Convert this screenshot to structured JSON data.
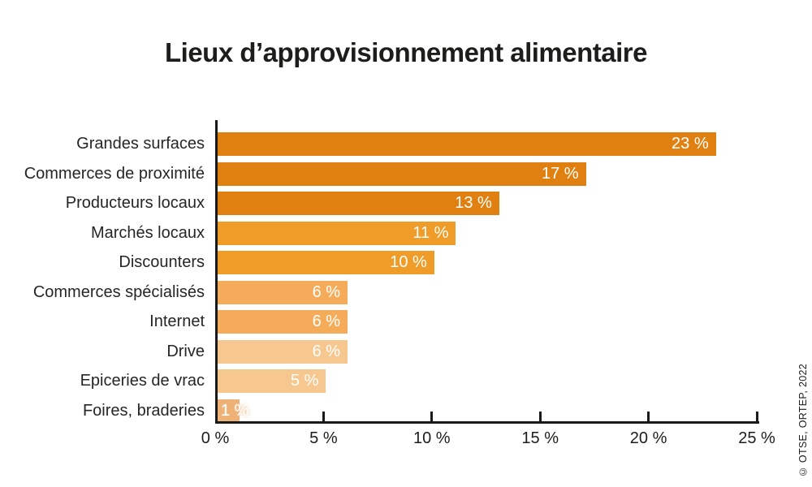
{
  "title": "Lieux d’approvisionnement alimentaire",
  "credit": "© OTSE, ORTEP, 2022",
  "chart_data": {
    "type": "bar",
    "orientation": "horizontal",
    "title": "Lieux d’approvisionnement alimentaire",
    "categories": [
      "Grandes surfaces",
      "Commerces de proximité",
      "Producteurs locaux",
      "Marchés locaux",
      "Discounters",
      "Commerces spécialisés",
      "Internet",
      "Drive",
      "Epiceries de vrac",
      "Foires, braderies"
    ],
    "values": [
      23,
      17,
      13,
      11,
      10,
      6,
      6,
      6,
      5,
      1
    ],
    "value_labels": [
      "23 %",
      "17 %",
      "13 %",
      "11 %",
      "10 %",
      "6 %",
      "6 %",
      "6 %",
      "5 %",
      "1 %"
    ],
    "bar_colors": [
      "#e08010",
      "#e08010",
      "#e08010",
      "#ef9c28",
      "#ef9c28",
      "#f4ac5a",
      "#f4ac5a",
      "#f6c88f",
      "#f6c88f",
      "#efb276"
    ],
    "x_ticks": [
      "0 %",
      "5 %",
      "10 %",
      "15 %",
      "20 %",
      "25 %"
    ],
    "x_tick_values": [
      0,
      5,
      10,
      15,
      20,
      25
    ],
    "xlim": [
      0,
      25
    ],
    "grid": false,
    "legend": false,
    "axis_color": "#1a1a1a",
    "category_label_color": "#262626",
    "value_label_color": "#ffffff",
    "title_color": "#1d1d1b"
  }
}
